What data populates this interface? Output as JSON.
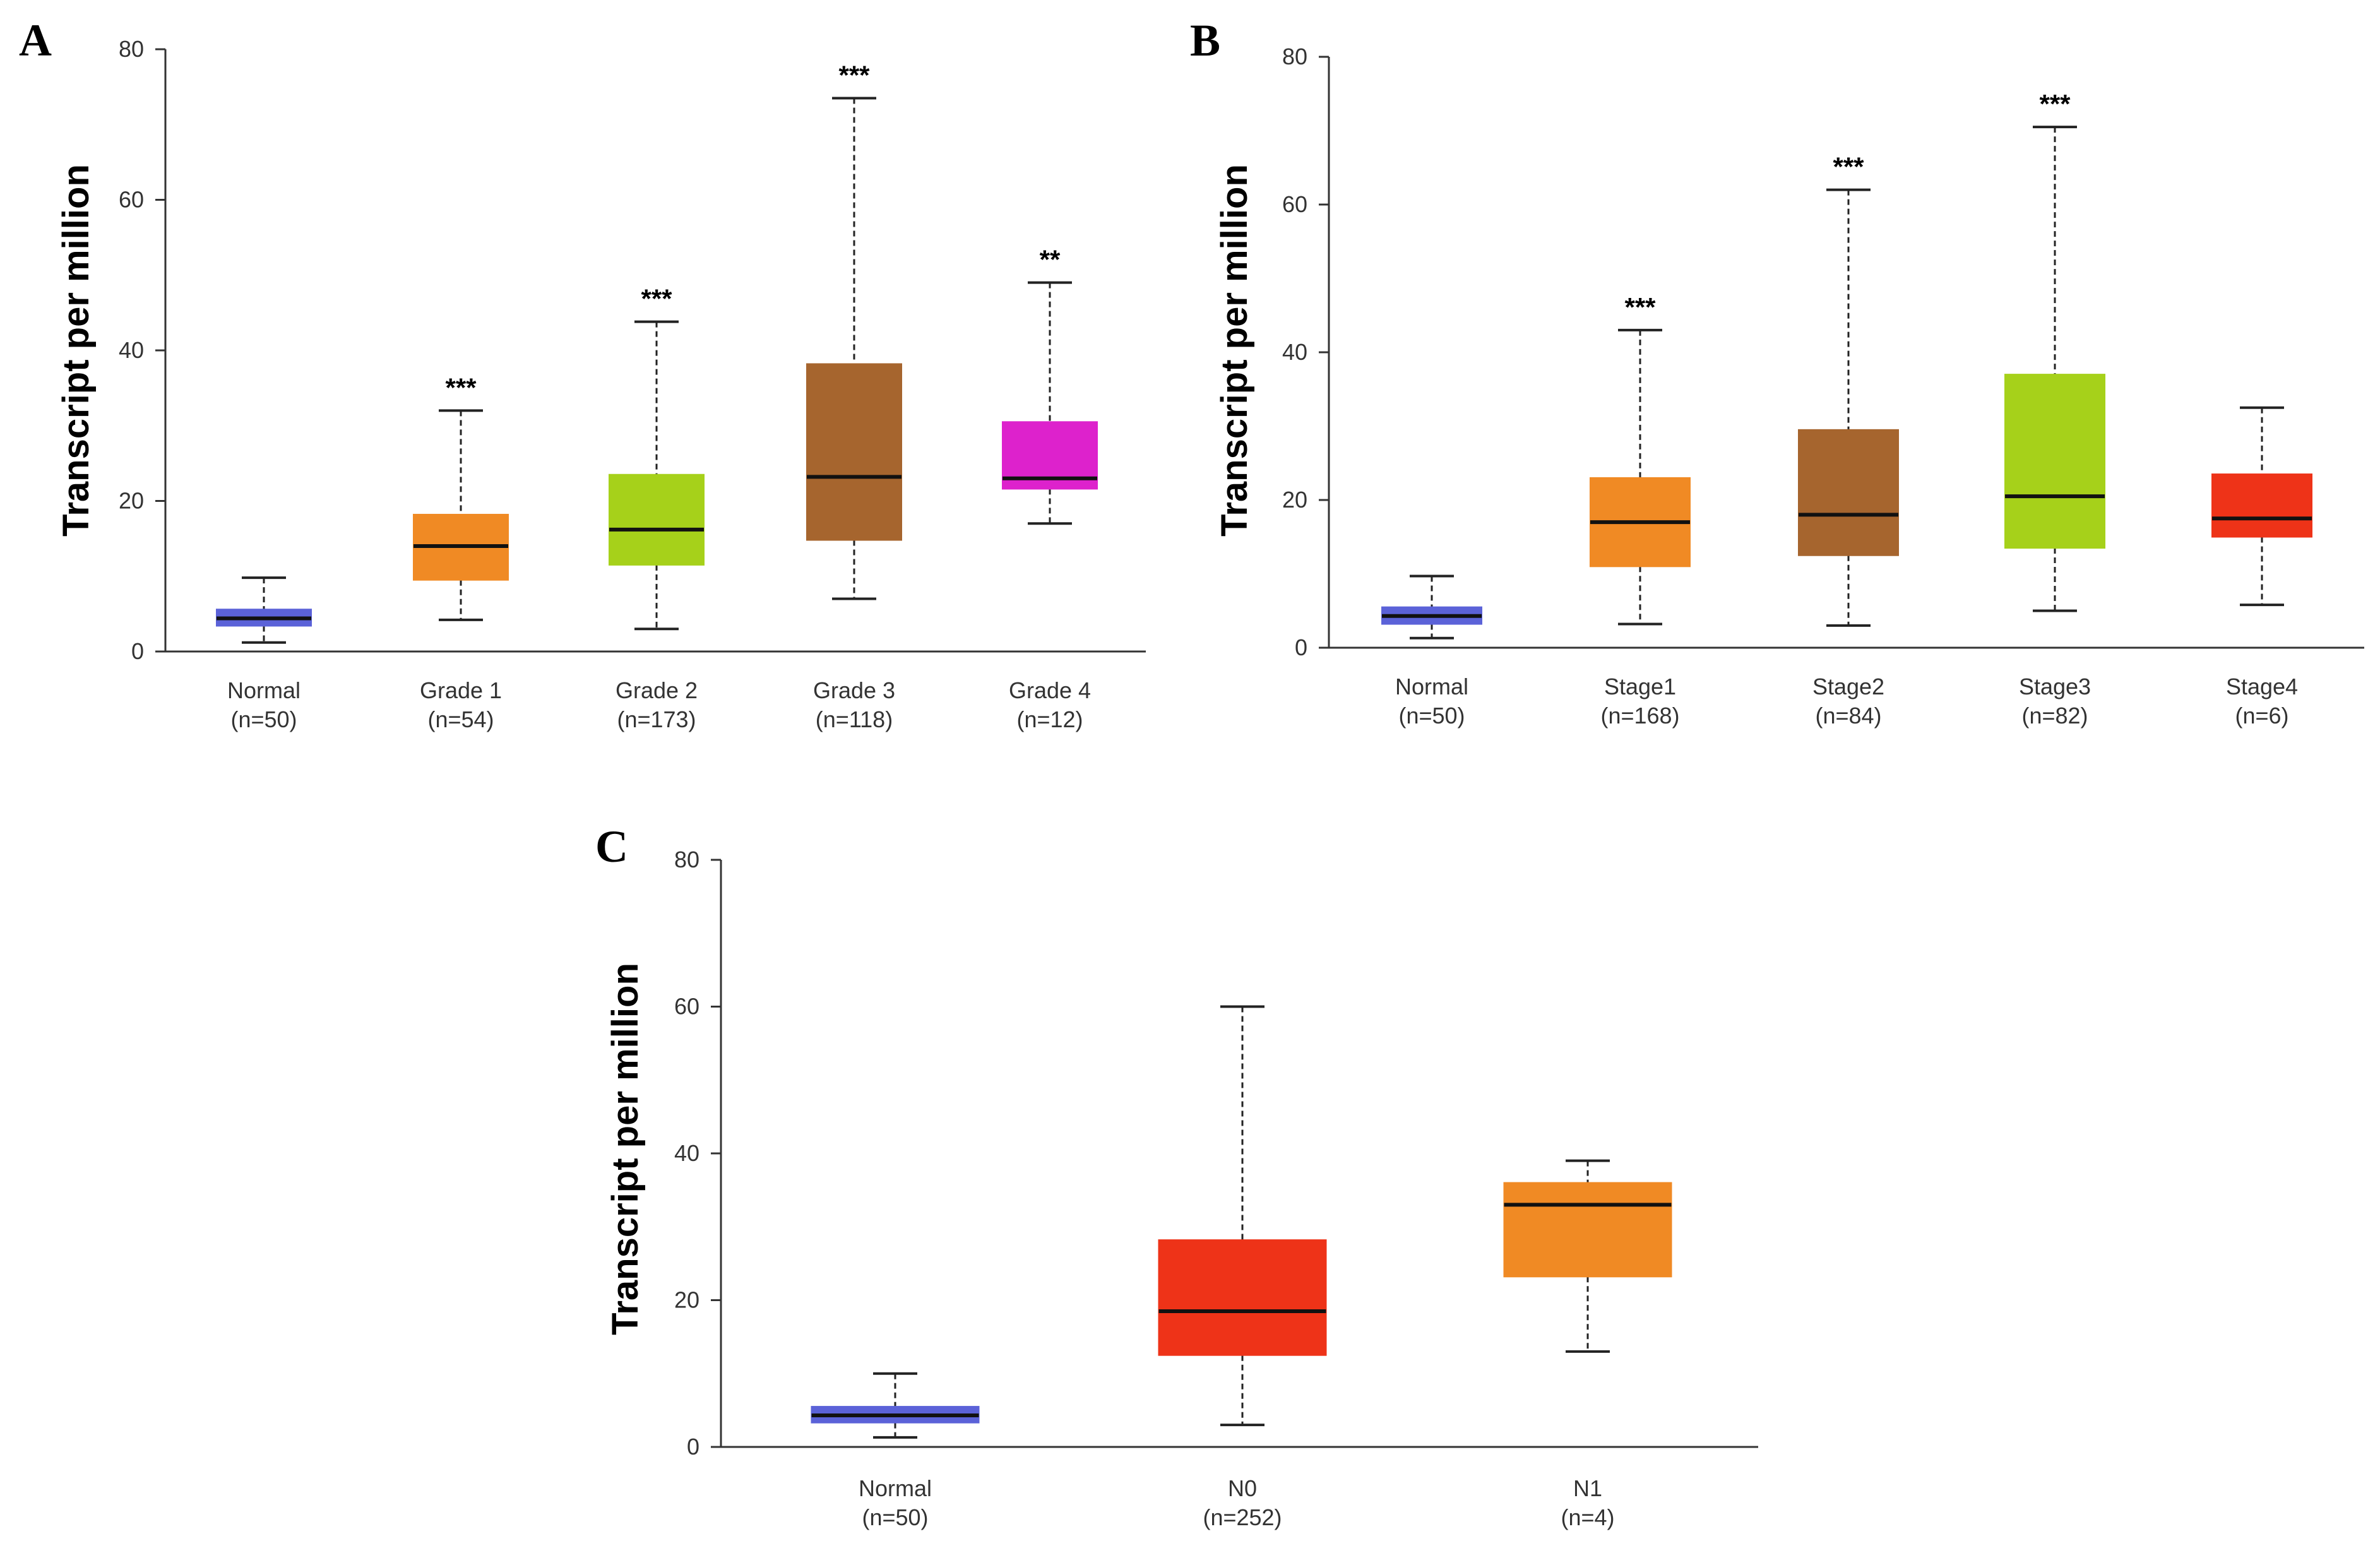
{
  "chart_data": [
    {
      "panel": "A",
      "type": "box",
      "ylabel": "Transcript per million",
      "ylim": [
        0,
        80
      ],
      "yticks": [
        0,
        20,
        40,
        60,
        80
      ],
      "colors": [
        "#5b62d8",
        "#f08a24",
        "#a6d11a",
        "#a6652e",
        "#dd22cc"
      ],
      "categories": [
        {
          "label": "Normal",
          "n": "(n=50)",
          "min": 1.2,
          "q1": 3.4,
          "median": 4.4,
          "q3": 5.6,
          "max": 9.8,
          "sig": ""
        },
        {
          "label": "Grade 1",
          "n": "(n=54)",
          "min": 4.2,
          "q1": 9.5,
          "median": 14.0,
          "q3": 18.2,
          "max": 32.0,
          "sig": "***"
        },
        {
          "label": "Grade 2",
          "n": "(n=173)",
          "min": 3.0,
          "q1": 11.5,
          "median": 16.2,
          "q3": 23.5,
          "max": 43.8,
          "sig": "***"
        },
        {
          "label": "Grade 3",
          "n": "(n=118)",
          "min": 7.0,
          "q1": 14.8,
          "median": 23.2,
          "q3": 38.2,
          "max": 73.5,
          "sig": "***"
        },
        {
          "label": "Grade 4",
          "n": "(n=12)",
          "min": 17.0,
          "q1": 21.6,
          "median": 23.0,
          "q3": 30.5,
          "max": 49.0,
          "sig": "**"
        }
      ]
    },
    {
      "panel": "B",
      "type": "box",
      "ylabel": "Transcript per million",
      "ylim": [
        0,
        80
      ],
      "yticks": [
        0,
        20,
        40,
        60,
        80
      ],
      "colors": [
        "#5b62d8",
        "#f08a24",
        "#a6652e",
        "#a6d11a",
        "#ee3318"
      ],
      "categories": [
        {
          "label": "Normal",
          "n": "(n=50)",
          "min": 1.3,
          "q1": 3.2,
          "median": 4.3,
          "q3": 5.5,
          "max": 9.7,
          "sig": ""
        },
        {
          "label": "Stage1",
          "n": "(n=168)",
          "min": 3.2,
          "q1": 11.0,
          "median": 17.0,
          "q3": 23.0,
          "max": 43.0,
          "sig": "***"
        },
        {
          "label": "Stage2",
          "n": "(n=84)",
          "min": 3.0,
          "q1": 12.5,
          "median": 18.0,
          "q3": 29.5,
          "max": 62.0,
          "sig": "***"
        },
        {
          "label": "Stage3",
          "n": "(n=82)",
          "min": 5.0,
          "q1": 13.5,
          "median": 20.5,
          "q3": 37.0,
          "max": 70.5,
          "sig": "***"
        },
        {
          "label": "Stage4",
          "n": "(n=6)",
          "min": 5.8,
          "q1": 15.0,
          "median": 17.5,
          "q3": 23.5,
          "max": 32.5,
          "sig": ""
        }
      ]
    },
    {
      "panel": "C",
      "type": "box",
      "ylabel": "Transcript per million",
      "ylim": [
        0,
        80
      ],
      "yticks": [
        0,
        20,
        40,
        60,
        80
      ],
      "colors": [
        "#5b62d8",
        "#ee3318",
        "#f08a24"
      ],
      "categories": [
        {
          "label": "Normal",
          "n": "(n=50)",
          "min": 1.3,
          "q1": 3.3,
          "median": 4.3,
          "q3": 5.5,
          "max": 10.0,
          "sig": ""
        },
        {
          "label": "N0",
          "n": "(n=252)",
          "min": 3.0,
          "q1": 12.5,
          "median": 18.5,
          "q3": 28.2,
          "max": 60.0,
          "sig": ""
        },
        {
          "label": "N1",
          "n": "(n=4)",
          "min": 13.0,
          "q1": 23.2,
          "median": 33.0,
          "q3": 36.0,
          "max": 39.0,
          "sig": ""
        }
      ]
    }
  ]
}
